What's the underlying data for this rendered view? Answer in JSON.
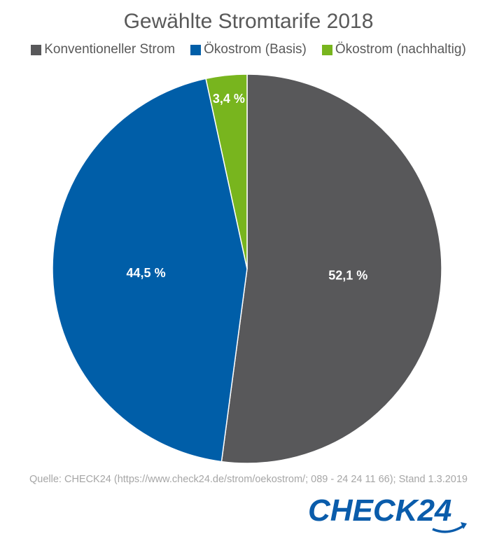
{
  "chart_data": {
    "type": "pie",
    "title": "Gewählte Stromtarife 2018",
    "legend_position": "top",
    "slices": [
      {
        "name": "Konventioneller Strom",
        "value": 52.1,
        "label": "52,1 %",
        "color": "#58585a"
      },
      {
        "name": "Ökostrom (Basis)",
        "value": 44.5,
        "label": "44,5 %",
        "color": "#005ea8"
      },
      {
        "name": "Ökostrom (nachhaltig)",
        "value": 3.4,
        "label": "3,4 %",
        "color": "#78b51e"
      }
    ],
    "start_angle_deg": 0,
    "direction": "clockwise"
  },
  "footer": {
    "source": "Quelle: CHECK24 (https://www.check24.de/strom/oekostrom/; 089 - 24 24 11 66); Stand 1.3.2019"
  },
  "brand": {
    "logo_text": "CHECK24",
    "color": "#0a5cab"
  }
}
